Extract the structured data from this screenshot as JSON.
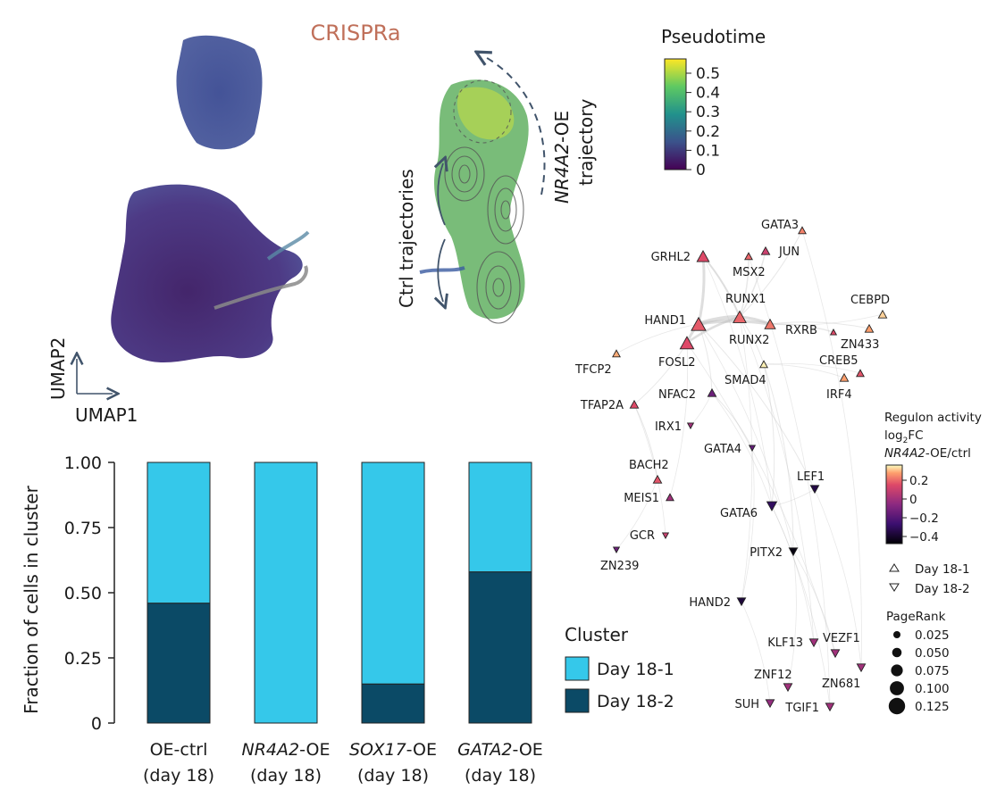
{
  "colors": {
    "day18_1": "#35c8ea",
    "day18_2": "#0b4a66",
    "arrow": "#41546b",
    "title": "#c0705a",
    "edge": "#bdbdbd"
  },
  "umap": {
    "title": "CRISPRa",
    "xlabel": "UMAP1",
    "ylabel": "UMAP2"
  },
  "trajectory": {
    "oe_label_gene": "NR4A2",
    "oe_label_rest": "-OE",
    "oe_label_line2": "trajectory",
    "ctrl_label": "Ctrl trajectories"
  },
  "pseudotime": {
    "title": "Pseudotime",
    "ticks": [
      "0.5",
      "0.4",
      "0.3",
      "0.2",
      "0.1",
      "0"
    ]
  },
  "chart_data": {
    "type": "bar",
    "stacked": true,
    "categories": [
      {
        "gene": "OE-ctrl",
        "gene_italic": false,
        "suffix": "",
        "day": "(day 18)"
      },
      {
        "gene": "NR4A2",
        "gene_italic": true,
        "suffix": "-OE",
        "day": "(day 18)"
      },
      {
        "gene": "SOX17",
        "gene_italic": true,
        "suffix": "-OE",
        "day": "(day 18)"
      },
      {
        "gene": "GATA2",
        "gene_italic": true,
        "suffix": "-OE",
        "day": "(day 18)"
      }
    ],
    "series": [
      {
        "name": "Day 18-2",
        "color": "#0b4a66",
        "values": [
          0.46,
          0.0,
          0.15,
          0.58
        ]
      },
      {
        "name": "Day 18-1",
        "color": "#35c8ea",
        "values": [
          0.54,
          1.0,
          0.85,
          0.42
        ]
      }
    ],
    "ylabel": "Fraction of cells in cluster",
    "ylim": [
      0,
      1
    ],
    "yticks": [
      "1.00",
      "0.75",
      "0.50",
      "0.25",
      "0"
    ],
    "legend_title": "Cluster",
    "legend_labels": [
      "Day 18-1",
      "Day 18-2"
    ]
  },
  "network": {
    "nodes": [
      {
        "name": "GATA3",
        "value": 0.2,
        "dir": "up",
        "rank": 0.04
      },
      {
        "name": "JUN",
        "value": 0.05,
        "dir": "up",
        "rank": 0.05
      },
      {
        "name": "GRHL2",
        "value": 0.1,
        "dir": "up",
        "rank": 0.1
      },
      {
        "name": "MSX2",
        "value": 0.15,
        "dir": "up",
        "rank": 0.04
      },
      {
        "name": "RUNX1",
        "value": 0.15,
        "dir": "up",
        "rank": 0.11
      },
      {
        "name": "HAND1",
        "value": 0.13,
        "dir": "up",
        "rank": 0.13
      },
      {
        "name": "RUNX2",
        "value": 0.18,
        "dir": "up",
        "rank": 0.08
      },
      {
        "name": "RXRB",
        "value": 0.1,
        "dir": "up",
        "rank": 0.02
      },
      {
        "name": "CEBPD",
        "value": 0.33,
        "dir": "up",
        "rank": 0.05
      },
      {
        "name": "ZN433",
        "value": 0.25,
        "dir": "up",
        "rank": 0.05
      },
      {
        "name": "TFCP2",
        "value": 0.27,
        "dir": "up",
        "rank": 0.04
      },
      {
        "name": "FOSL2",
        "value": 0.1,
        "dir": "up",
        "rank": 0.12
      },
      {
        "name": "SMAD4",
        "value": 0.38,
        "dir": "up",
        "rank": 0.04
      },
      {
        "name": "CREB5",
        "value": 0.12,
        "dir": "up",
        "rank": 0.04
      },
      {
        "name": "IRF4",
        "value": 0.25,
        "dir": "up",
        "rank": 0.05
      },
      {
        "name": "NFAC2",
        "value": -0.18,
        "dir": "up",
        "rank": 0.05
      },
      {
        "name": "TFAP2A",
        "value": 0.1,
        "dir": "up",
        "rank": 0.05
      },
      {
        "name": "IRX1",
        "value": -0.05,
        "dir": "down",
        "rank": 0.02
      },
      {
        "name": "GATA4",
        "value": -0.2,
        "dir": "down",
        "rank": 0.02
      },
      {
        "name": "BACH2",
        "value": 0.12,
        "dir": "up",
        "rank": 0.05
      },
      {
        "name": "LEF1",
        "value": -0.38,
        "dir": "down",
        "rank": 0.05
      },
      {
        "name": "MEIS1",
        "value": -0.05,
        "dir": "up",
        "rank": 0.04
      },
      {
        "name": "GATA6",
        "value": -0.33,
        "dir": "down",
        "rank": 0.07
      },
      {
        "name": "GCR",
        "value": 0.05,
        "dir": "down",
        "rank": 0.02
      },
      {
        "name": "PITX2",
        "value": -0.48,
        "dir": "down",
        "rank": 0.05
      },
      {
        "name": "ZN239",
        "value": -0.18,
        "dir": "down",
        "rank": 0.02
      },
      {
        "name": "HAND2",
        "value": -0.4,
        "dir": "down",
        "rank": 0.05
      },
      {
        "name": "KLF13",
        "value": -0.05,
        "dir": "down",
        "rank": 0.05
      },
      {
        "name": "VEZF1",
        "value": -0.05,
        "dir": "down",
        "rank": 0.05
      },
      {
        "name": "ZNF12",
        "value": -0.05,
        "dir": "down",
        "rank": 0.05
      },
      {
        "name": "ZN681",
        "value": -0.05,
        "dir": "down",
        "rank": 0.05
      },
      {
        "name": "SUH",
        "value": -0.08,
        "dir": "down",
        "rank": 0.05
      },
      {
        "name": "TGIF1",
        "value": -0.05,
        "dir": "down",
        "rank": 0.05
      }
    ]
  },
  "regulon_legend": {
    "line1": "Regulon activity",
    "line2_pre": "log",
    "line2_sub": "2",
    "line2_post": "FC",
    "line3_gene": "NR4A2",
    "line3_rest": "-OE/ctrl",
    "ticks": [
      "0.2",
      "0",
      "−0.2",
      "−0.4"
    ],
    "shape_labels": [
      "Day 18-1",
      "Day 18-2"
    ]
  },
  "pagerank": {
    "title": "PageRank",
    "values": [
      "0.025",
      "0.050",
      "0.075",
      "0.100",
      "0.125"
    ]
  }
}
